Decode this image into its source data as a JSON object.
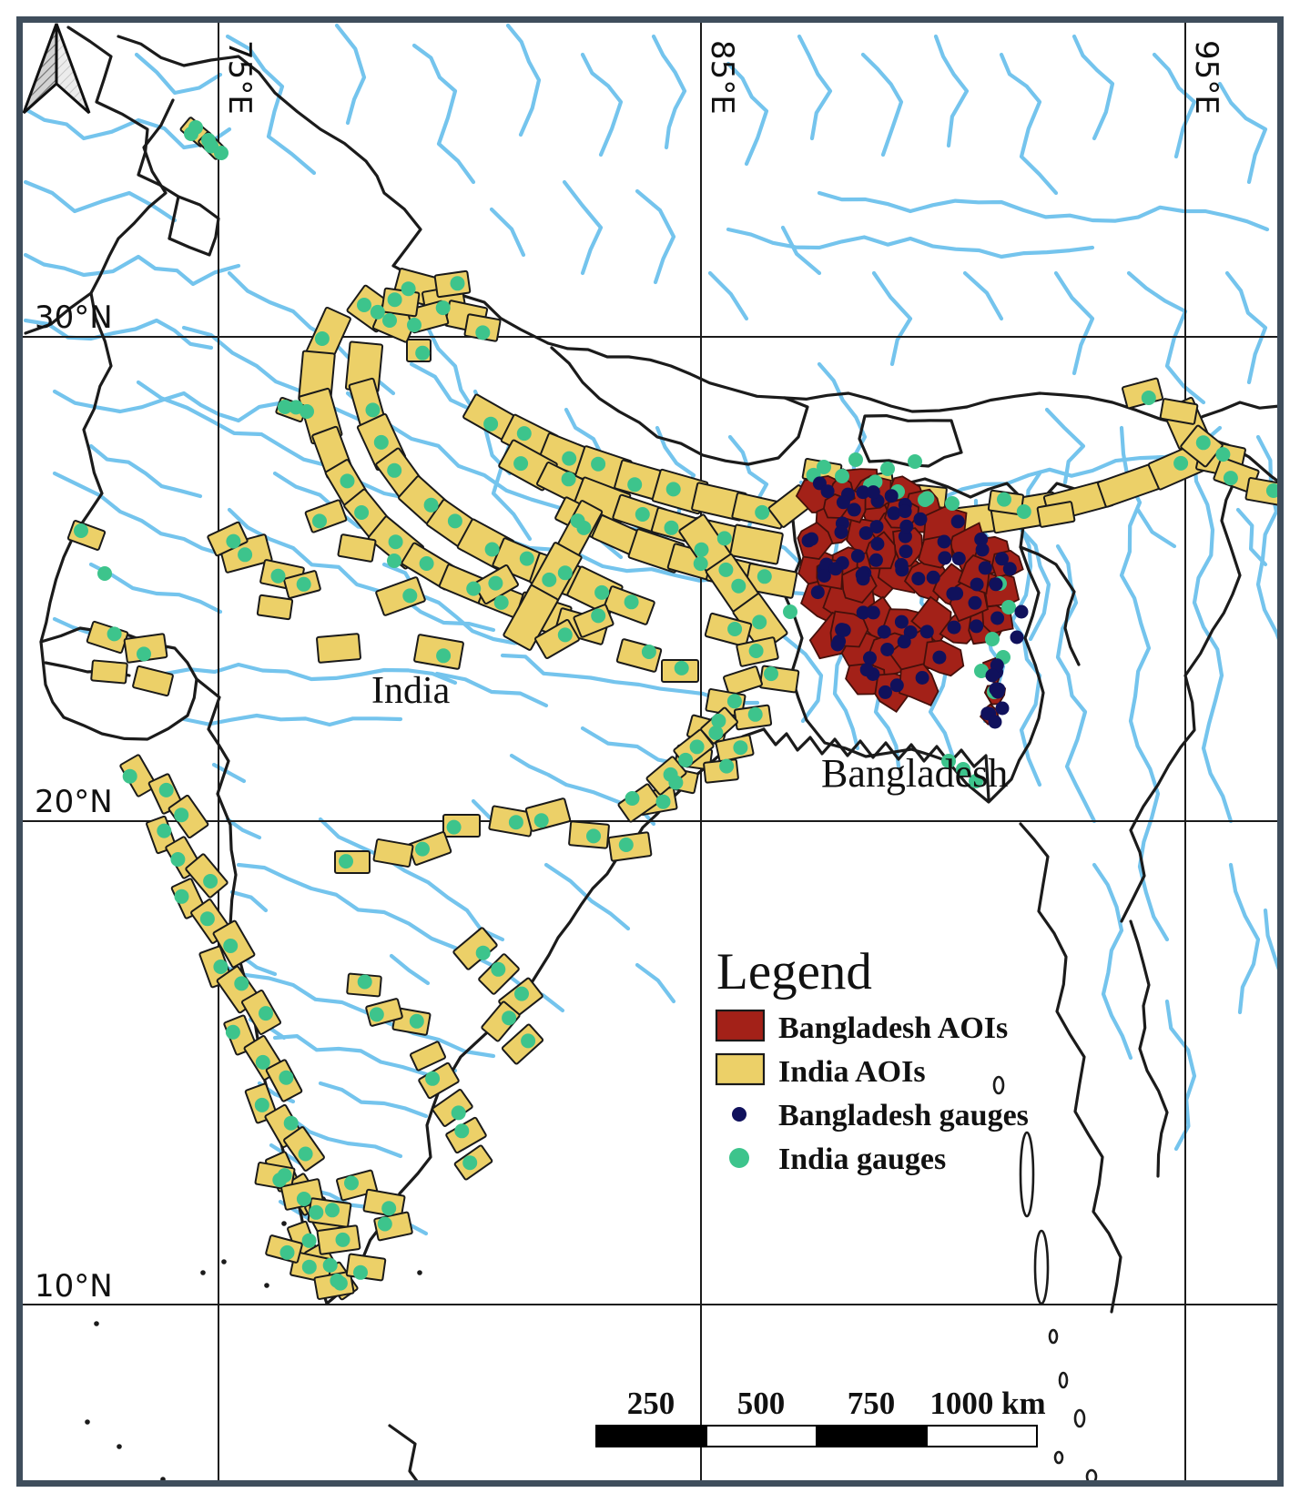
{
  "map": {
    "country_labels": [
      {
        "text": "India"
      },
      {
        "text": "Bangladesh"
      }
    ],
    "graticule": {
      "meridians": [
        {
          "label": "75°E"
        },
        {
          "label": "85°E"
        },
        {
          "label": "95°E"
        }
      ],
      "parallels": [
        {
          "label": "30°N"
        },
        {
          "label": "20°N"
        },
        {
          "label": "10°N"
        }
      ]
    }
  },
  "legend": {
    "title": "Legend",
    "items": [
      {
        "label": "Bangladesh AOIs",
        "swatch": "rect",
        "color": "#a32118",
        "stroke": "#1a1a1a"
      },
      {
        "label": "India AOIs",
        "swatch": "rect",
        "color": "#ecd068",
        "stroke": "#1a1a1a"
      },
      {
        "label": "Bangladesh gauges",
        "swatch": "dot",
        "color": "#10115c"
      },
      {
        "label": "India gauges",
        "swatch": "dot",
        "color": "#3dc48c"
      }
    ]
  },
  "scale_bar": {
    "tick_labels": [
      "250",
      "500",
      "750",
      "1000 km"
    ],
    "segments": [
      "#000000",
      "#ffffff",
      "#000000",
      "#ffffff"
    ]
  },
  "north_arrow": {
    "name": "north-arrow"
  },
  "colors": {
    "frame": "#3f4e5c",
    "river": "#74c4ed",
    "boundary": "#1b1b1b",
    "graticule": "#1b1b1b",
    "land": "#ffffff",
    "india_aoi_fill": "#ecd068",
    "india_aoi_stroke": "#1a1a1a",
    "bangladesh_aoi_fill": "#a32118",
    "bangladesh_aoi_stroke": "#45100b",
    "india_gauge": "#3dc48c",
    "bangladesh_gauge": "#10115c",
    "text": "#111111"
  }
}
